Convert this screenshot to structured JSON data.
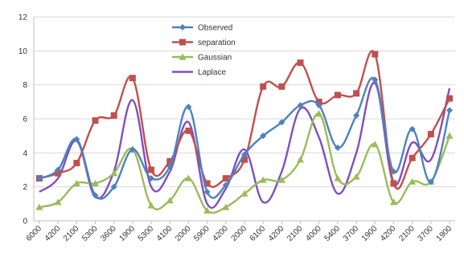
{
  "chart_data": {
    "type": "line",
    "title": "",
    "xlabel": "",
    "ylabel": "",
    "ylim": [
      0,
      12
    ],
    "yticks": [
      0,
      2,
      4,
      6,
      8,
      10,
      12
    ],
    "grid": "horizontal",
    "legend_position": "top-center",
    "categories": [
      "6000",
      "4200",
      "2100",
      "5300",
      "3600",
      "1900",
      "5300",
      "4100",
      "2000",
      "5900",
      "4200",
      "2000",
      "6100",
      "4200",
      "2100",
      "4000",
      "5400",
      "3700",
      "1900",
      "4200",
      "2100",
      "3700",
      "1900"
    ],
    "series": [
      {
        "name": "Observed",
        "color": "#4F81BD",
        "marker": "diamond",
        "values": [
          2.5,
          3.0,
          4.8,
          1.5,
          2.0,
          4.2,
          2.5,
          3.2,
          6.7,
          1.7,
          2.1,
          3.9,
          5.0,
          5.8,
          6.8,
          6.8,
          4.3,
          6.2,
          8.3,
          2.9,
          5.4,
          2.3,
          6.5
        ]
      },
      {
        "name": "separation",
        "color": "#C0504D",
        "marker": "square",
        "values": [
          2.5,
          2.8,
          3.4,
          5.9,
          6.2,
          8.4,
          3.0,
          3.5,
          5.3,
          2.2,
          2.5,
          3.6,
          7.9,
          7.9,
          9.3,
          7.0,
          7.4,
          7.5,
          9.8,
          2.2,
          3.7,
          5.1,
          7.2
        ]
      },
      {
        "name": "Gaussian",
        "color": "#9BBB59",
        "marker": "triangle",
        "values": [
          0.8,
          1.1,
          2.2,
          2.2,
          2.8,
          4.2,
          0.9,
          1.2,
          2.5,
          0.6,
          0.8,
          1.6,
          2.4,
          2.4,
          3.6,
          6.3,
          2.5,
          2.6,
          4.5,
          1.1,
          2.3,
          2.3,
          5.0
        ]
      },
      {
        "name": "Laplace",
        "color": "#7F4FBF",
        "marker": "none",
        "values": [
          1.7,
          2.5,
          4.7,
          1.4,
          2.9,
          7.1,
          2.0,
          2.9,
          5.8,
          1.0,
          1.9,
          4.2,
          1.1,
          2.9,
          6.6,
          4.9,
          1.6,
          4.0,
          8.1,
          2.2,
          4.6,
          3.6,
          7.8
        ]
      }
    ]
  }
}
